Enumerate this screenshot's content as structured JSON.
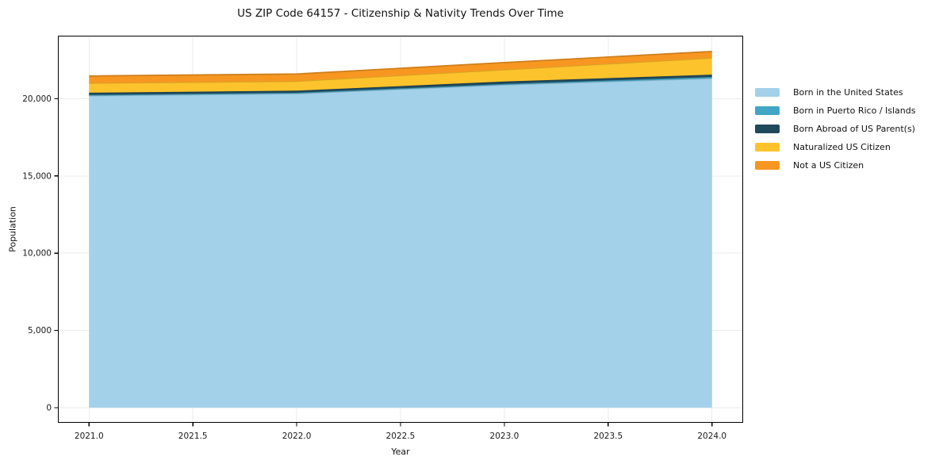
{
  "title": "US ZIP Code 64157 - Citizenship & Nativity Trends Over Time",
  "chart_data": {
    "type": "area",
    "stacked": true,
    "title": "US ZIP Code 64157 - Citizenship & Nativity Trends Over Time",
    "xlabel": "Year",
    "ylabel": "Population",
    "x": [
      2021,
      2022,
      2023,
      2024
    ],
    "series": [
      {
        "name": "Born in the United States",
        "color": "#A3D1E9",
        "values": [
          20200,
          20330,
          20900,
          21320
        ]
      },
      {
        "name": "Born in Puerto Rico / Islands",
        "color": "#41A6C5",
        "values": [
          50,
          60,
          60,
          90
        ]
      },
      {
        "name": "Born Abroad of US Parent(s)",
        "color": "#20495C",
        "values": [
          140,
          130,
          150,
          150
        ]
      },
      {
        "name": "Naturalized US Citizen",
        "color": "#FCC32C",
        "values": [
          620,
          620,
          770,
          1080
        ]
      },
      {
        "name": "Not a US Citizen",
        "color": "#F79721",
        "values": [
          460,
          460,
          460,
          420
        ]
      }
    ],
    "xticks": {
      "values": [
        2021.0,
        2021.5,
        2022.0,
        2022.5,
        2023.0,
        2023.5,
        2024.0
      ],
      "labels": [
        "2021.0",
        "2021.5",
        "2022.0",
        "2022.5",
        "2023.0",
        "2023.5",
        "2024.0"
      ]
    },
    "yticks": {
      "values": [
        0,
        5000,
        10000,
        15000,
        20000
      ],
      "labels": [
        "0",
        "5,000",
        "10,000",
        "15,000",
        "20,000"
      ]
    },
    "xlim": [
      2020.85,
      2024.15
    ],
    "ylim": [
      -980,
      24080
    ],
    "grid": true,
    "legend_position": "right"
  },
  "colors": {
    "background": "#ffffff",
    "grid": "#ebebeb",
    "spine": "#000000",
    "tick_text": "#1a1a1a"
  }
}
